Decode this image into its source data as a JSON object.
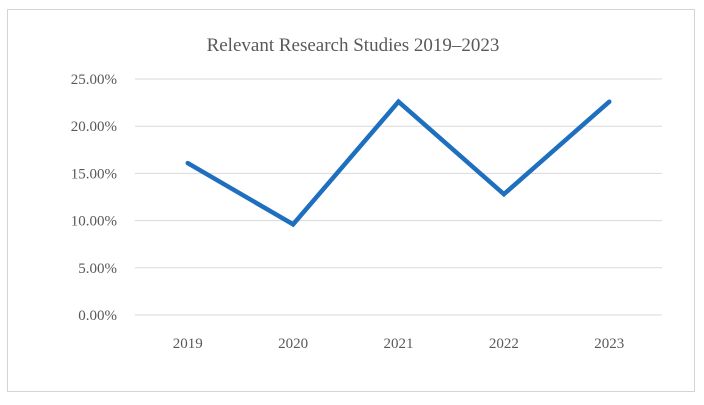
{
  "chart_data": {
    "type": "line",
    "title": "Relevant Research Studies 2019–2023",
    "xlabel": "",
    "ylabel": "",
    "categories": [
      "2019",
      "2020",
      "2021",
      "2022",
      "2023"
    ],
    "y_ticks": [
      "0.00%",
      "5.00%",
      "10.00%",
      "15.00%",
      "20.00%",
      "25.00%"
    ],
    "ylim": [
      0,
      25
    ],
    "grid": true,
    "legend": "none",
    "series": [
      {
        "values": [
          16.1,
          9.6,
          22.6,
          12.8,
          22.6
        ],
        "color": "#1f6fbf"
      }
    ]
  }
}
